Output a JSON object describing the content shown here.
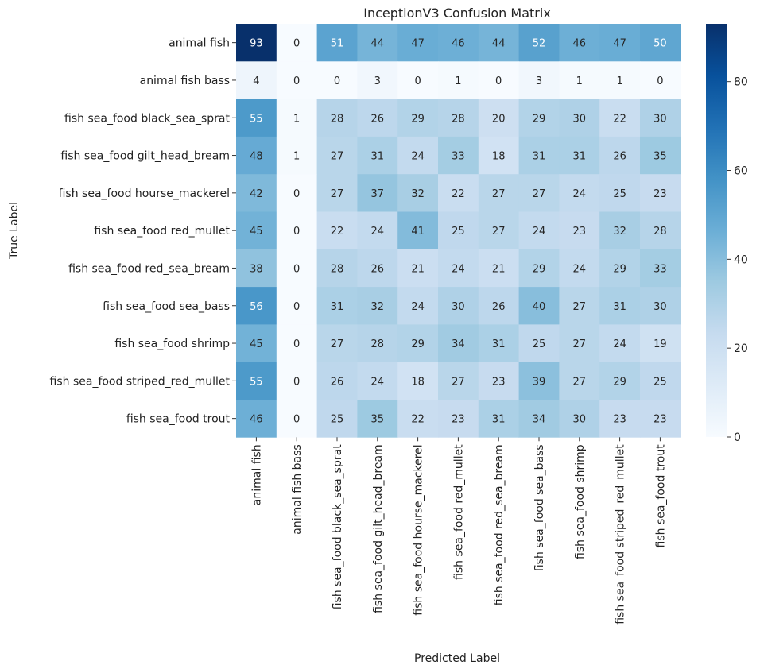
{
  "chart_data": {
    "type": "heatmap",
    "title": "InceptionV3 Confusion Matrix",
    "xlabel": "Predicted Label",
    "ylabel": "True Label",
    "colormap": "Blues",
    "vmin": 0,
    "vmax": 93,
    "colorbar_ticks": [
      0,
      20,
      40,
      60,
      80
    ],
    "colorbar_tick_labels": [
      "0",
      "20",
      "40",
      "60",
      "80"
    ],
    "row_labels": [
      "animal fish",
      "animal fish bass",
      "fish sea_food black_sea_sprat",
      "fish sea_food gilt_head_bream",
      "fish sea_food hourse_mackerel",
      "fish sea_food red_mullet",
      "fish sea_food red_sea_bream",
      "fish sea_food sea_bass",
      "fish sea_food shrimp",
      "fish sea_food striped_red_mullet",
      "fish sea_food trout"
    ],
    "col_labels": [
      "animal fish",
      "animal fish bass",
      "fish sea_food black_sea_sprat",
      "fish sea_food gilt_head_bream",
      "fish sea_food hourse_mackerel",
      "fish sea_food red_mullet",
      "fish sea_food red_sea_bream",
      "fish sea_food sea_bass",
      "fish sea_food shrimp",
      "fish sea_food striped_red_mullet",
      "fish sea_food trout"
    ],
    "values": [
      [
        93,
        0,
        51,
        44,
        47,
        46,
        44,
        52,
        46,
        47,
        50
      ],
      [
        4,
        0,
        0,
        3,
        0,
        1,
        0,
        3,
        1,
        1,
        0
      ],
      [
        55,
        1,
        28,
        26,
        29,
        28,
        20,
        29,
        30,
        22,
        30
      ],
      [
        48,
        1,
        27,
        31,
        24,
        33,
        18,
        31,
        31,
        26,
        35
      ],
      [
        42,
        0,
        27,
        37,
        32,
        22,
        27,
        27,
        24,
        25,
        23
      ],
      [
        45,
        0,
        22,
        24,
        41,
        25,
        27,
        24,
        23,
        32,
        28
      ],
      [
        38,
        0,
        28,
        26,
        21,
        24,
        21,
        29,
        24,
        29,
        33
      ],
      [
        56,
        0,
        31,
        32,
        24,
        30,
        26,
        40,
        27,
        31,
        30
      ],
      [
        45,
        0,
        27,
        28,
        29,
        34,
        31,
        25,
        27,
        24,
        19
      ],
      [
        55,
        0,
        26,
        24,
        18,
        27,
        23,
        39,
        27,
        29,
        25
      ],
      [
        46,
        0,
        25,
        35,
        22,
        23,
        31,
        34,
        30,
        23,
        23
      ]
    ]
  }
}
